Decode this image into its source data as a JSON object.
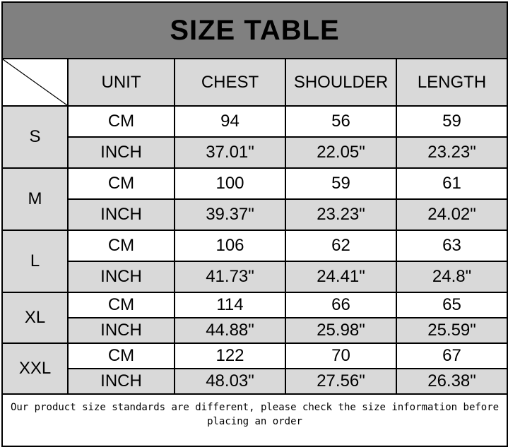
{
  "title": "SIZE TABLE",
  "headers": [
    "UNIT",
    "CHEST",
    "SHOULDER",
    "LENGTH"
  ],
  "rows": [
    {
      "size": "S",
      "cm": {
        "unit": "CM",
        "chest": "94",
        "shoulder": "56",
        "length": "59"
      },
      "inch": {
        "unit": "INCH",
        "chest": "37.01\"",
        "shoulder": "22.05\"",
        "length": "23.23\""
      }
    },
    {
      "size": "M",
      "cm": {
        "unit": "CM",
        "chest": "100",
        "shoulder": "59",
        "length": "61"
      },
      "inch": {
        "unit": "INCH",
        "chest": "39.37\"",
        "shoulder": "23.23\"",
        "length": "24.02\""
      }
    },
    {
      "size": "L",
      "cm": {
        "unit": "CM",
        "chest": "106",
        "shoulder": "62",
        "length": "63"
      },
      "inch": {
        "unit": "INCH",
        "chest": "41.73\"",
        "shoulder": "24.41\"",
        "length": "24.8\""
      }
    },
    {
      "size": "XL",
      "cm": {
        "unit": "CM",
        "chest": "114",
        "shoulder": "66",
        "length": "65"
      },
      "inch": {
        "unit": "INCH",
        "chest": "44.88\"",
        "shoulder": "25.98\"",
        "length": "25.59\""
      }
    },
    {
      "size": "XXL",
      "cm": {
        "unit": "CM",
        "chest": "122",
        "shoulder": "70",
        "length": "67"
      },
      "inch": {
        "unit": "INCH",
        "chest": "48.03\"",
        "shoulder": "27.56\"",
        "length": "26.38\""
      }
    }
  ],
  "footer": "Our product size standards are different, please check the size information before placing an order",
  "colors": {
    "title_bg": "#808080",
    "shade": "#d9d9d9"
  }
}
